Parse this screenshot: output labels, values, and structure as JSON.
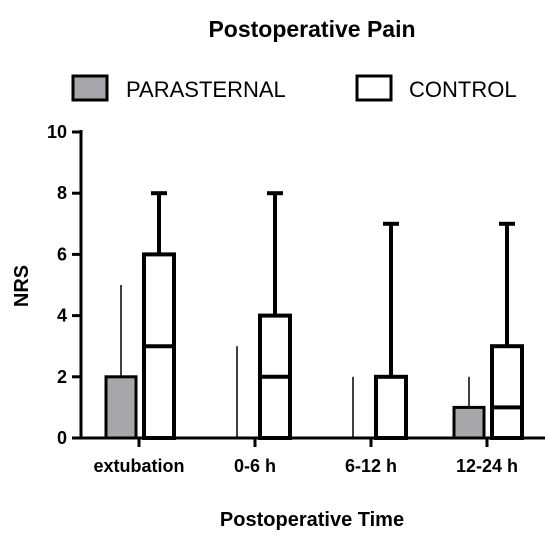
{
  "chart_data": {
    "type": "box",
    "title": "Postoperative Pain",
    "xlabel": "Postoperative Time",
    "ylabel": "NRS",
    "categories": [
      "extubation",
      "0-6 h",
      "6-12 h",
      "12-24 h"
    ],
    "ylim": [
      0,
      10
    ],
    "yticks": [
      0,
      2,
      4,
      6,
      8,
      10
    ],
    "legend_position": "top",
    "series": [
      {
        "name": "PARASTERNAL",
        "color": "#a7a7ab",
        "boxes": [
          {
            "min": 0,
            "q1": 0,
            "median": 0,
            "q3": 2,
            "max": 5
          },
          {
            "min": 0,
            "q1": 0,
            "median": 0,
            "q3": 0,
            "max": 3
          },
          {
            "min": 0,
            "q1": 0,
            "median": 0,
            "q3": 0,
            "max": 2
          },
          {
            "min": 0,
            "q1": 0,
            "median": 0,
            "q3": 1,
            "max": 2
          }
        ]
      },
      {
        "name": "CONTROL",
        "color": "#ffffff",
        "boxes": [
          {
            "min": 0,
            "q1": 0,
            "median": 3,
            "q3": 6,
            "max": 8
          },
          {
            "min": 0,
            "q1": 0,
            "median": 2,
            "q3": 4,
            "max": 8
          },
          {
            "min": 0,
            "q1": 0,
            "median": 0,
            "q3": 2,
            "max": 7
          },
          {
            "min": 0,
            "q1": 0,
            "median": 1,
            "q3": 3,
            "max": 7
          }
        ]
      }
    ]
  }
}
